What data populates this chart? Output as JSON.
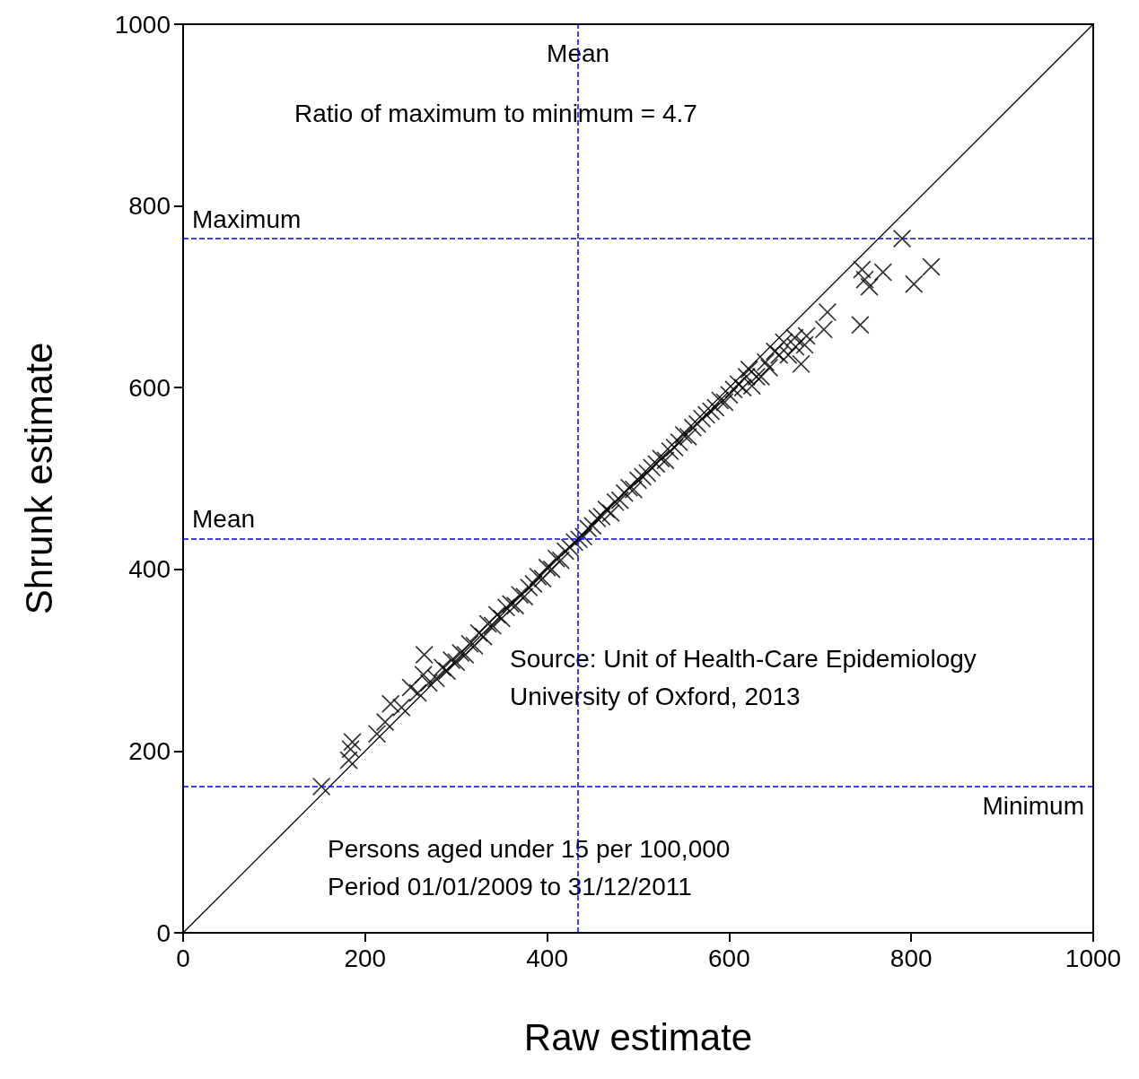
{
  "chart_data": {
    "type": "scatter",
    "xlabel": "Raw estimate",
    "ylabel": "Shrunk estimate",
    "xlim": [
      0,
      1000
    ],
    "ylim": [
      0,
      1000
    ],
    "xticks": [
      0,
      200,
      400,
      600,
      800,
      1000
    ],
    "yticks": [
      0,
      200,
      400,
      600,
      800,
      1000
    ],
    "grid": false,
    "series": [
      {
        "type": "scatter",
        "color": "#000000",
        "marker": "cross",
        "x": [
          152,
          184,
          182,
          186,
          213,
          222,
          228,
          250,
          265,
          264,
          258,
          240,
          270,
          278,
          285,
          290,
          295,
          300,
          305,
          310,
          315,
          320,
          325,
          330,
          335,
          340,
          345,
          350,
          355,
          360,
          365,
          370,
          375,
          380,
          385,
          390,
          395,
          400,
          405,
          410,
          415,
          420,
          425,
          430,
          435,
          440,
          445,
          450,
          455,
          460,
          465,
          470,
          475,
          480,
          485,
          490,
          495,
          500,
          505,
          510,
          515,
          520,
          525,
          530,
          535,
          540,
          545,
          550,
          555,
          560,
          565,
          570,
          575,
          580,
          585,
          590,
          595,
          600,
          605,
          610,
          615,
          622,
          630,
          640,
          650,
          660,
          665,
          672,
          619,
          625,
          635,
          644,
          655,
          679,
          673,
          683,
          685,
          704,
          708,
          744,
          746,
          769,
          749,
          754,
          803,
          822,
          790
        ],
        "values": [
          161,
          202,
          190,
          210,
          219,
          232,
          252,
          270,
          306,
          284,
          264,
          248,
          275,
          280,
          292,
          288,
          300,
          298,
          308,
          306,
          318,
          316,
          330,
          326,
          340,
          338,
          350,
          346,
          358,
          362,
          360,
          372,
          370,
          380,
          384,
          392,
          390,
          402,
          400,
          412,
          410,
          420,
          424,
          430,
          433,
          436,
          445,
          448,
          456,
          458,
          466,
          462,
          474,
          476,
          484,
          490,
          488,
          498,
          502,
          506,
          512,
          516,
          522,
          520,
          530,
          534,
          540,
          548,
          546,
          556,
          560,
          566,
          570,
          574,
          578,
          586,
          584,
          592,
          598,
          604,
          600,
          620,
          612,
          628,
          640,
          650,
          636,
          655,
          612,
          602,
          612,
          622,
          636,
          626,
          645,
          647,
          657,
          664,
          683,
          669,
          730,
          727,
          719,
          711,
          714,
          733,
          764
        ]
      },
      {
        "type": "line",
        "color": "#000000",
        "x": [
          0,
          1000
        ],
        "values": [
          0,
          1000
        ]
      }
    ],
    "ref_lines": [
      {
        "axis": "x",
        "value": 434,
        "label": "Mean",
        "color": "#0000ff",
        "line_style": "dashed"
      },
      {
        "axis": "y",
        "value": 764,
        "label": "Maximum",
        "color": "#0000ff",
        "line_style": "dashed"
      },
      {
        "axis": "y",
        "value": 434,
        "label": "Mean",
        "color": "#0000ff",
        "line_style": "dashed"
      },
      {
        "axis": "y",
        "value": 161,
        "label": "Minimum",
        "color": "#0000ff",
        "line_style": "dashed"
      }
    ],
    "annotations": [
      "Ratio of maximum to minimum = 4.7",
      "Source: Unit of Health-Care Epidemiology\nUniversity of Oxford, 2013",
      "Persons aged under 15 per 100,000\nPeriod 01/01/2009 to 31/12/2011"
    ]
  }
}
